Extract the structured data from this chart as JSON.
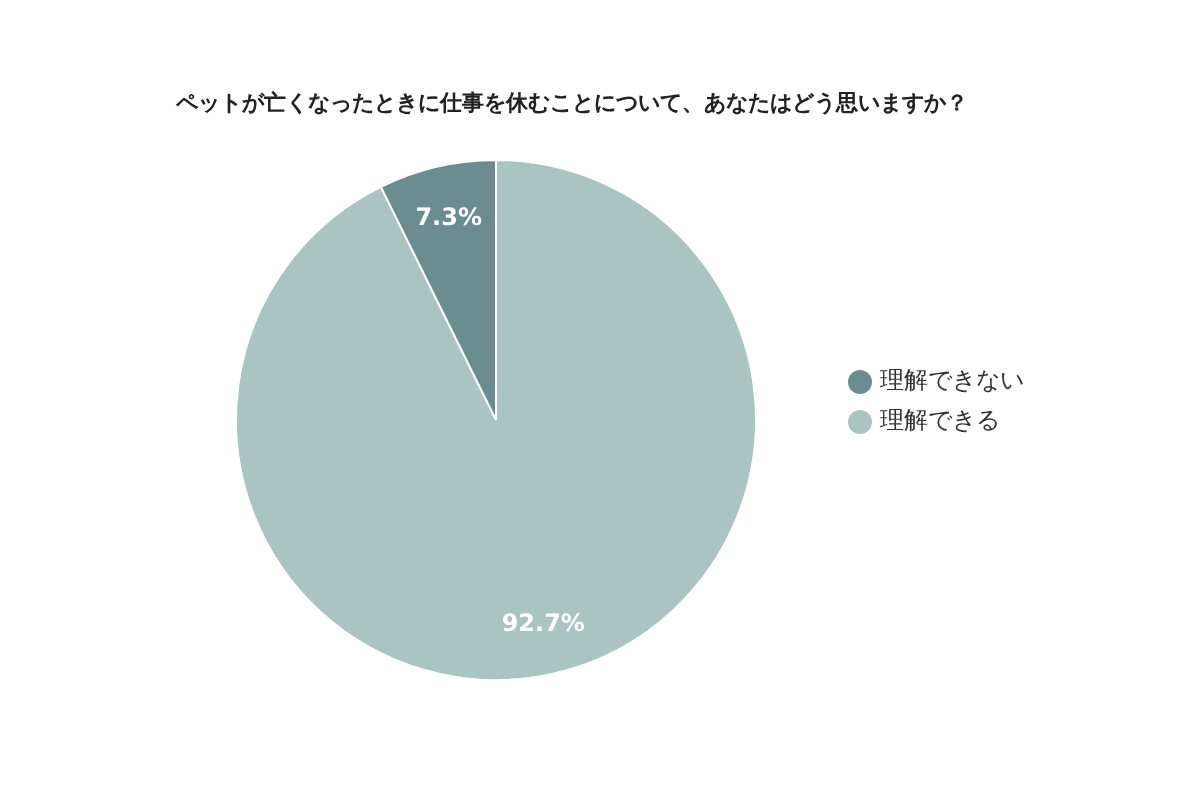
{
  "chart_data": {
    "type": "pie",
    "title": "ペットが亡くなったときに仕事を休むことについて、あなたはどう思いますか？",
    "categories": [
      "理解できる",
      "理解できない"
    ],
    "values": [
      92.7,
      7.3
    ],
    "colors": [
      "#a9c4c1",
      "#6b8d92"
    ],
    "value_labels": [
      "92.7%",
      "7.3%"
    ],
    "legend": "right"
  }
}
